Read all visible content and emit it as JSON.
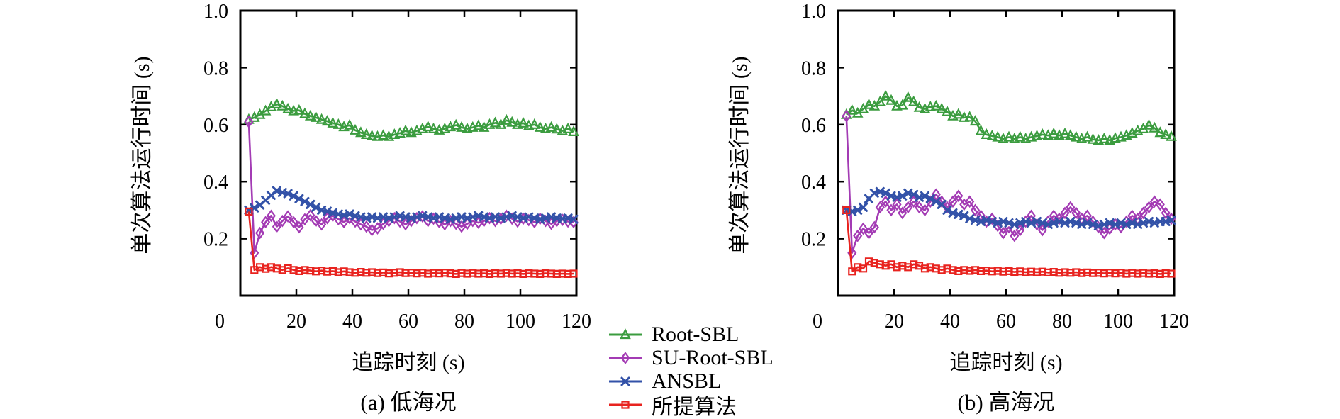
{
  "chart_data": [
    {
      "type": "line",
      "title": "(a) 低海况",
      "xlabel": "追踪时刻 (s)",
      "ylabel": "单次算法运行时间 (s)",
      "xlim": [
        0,
        120
      ],
      "ylim": [
        0,
        1.0
      ],
      "x_ticks": [
        0,
        20,
        40,
        60,
        80,
        100,
        120
      ],
      "x_tick_labels": [
        "0",
        "20",
        "40",
        "60",
        "80",
        "100",
        "120"
      ],
      "y_ticks": [
        0.2,
        0.4,
        0.6,
        0.8,
        1.0
      ],
      "y_tick_labels": [
        "0.2",
        "0.4",
        "0.6",
        "0.8",
        "1.0"
      ],
      "grid": false,
      "x": [
        3,
        5,
        7,
        9,
        11,
        13,
        15,
        17,
        19,
        21,
        23,
        25,
        27,
        29,
        31,
        33,
        35,
        37,
        39,
        41,
        43,
        45,
        47,
        49,
        51,
        53,
        55,
        57,
        59,
        61,
        63,
        65,
        67,
        69,
        71,
        73,
        75,
        77,
        79,
        81,
        83,
        85,
        87,
        89,
        91,
        93,
        95,
        97,
        99,
        101,
        103,
        105,
        107,
        109,
        111,
        113,
        115,
        117,
        119
      ],
      "series": [
        {
          "name": "Root-SBL",
          "color": "#3B9C3F",
          "marker": "triangle",
          "values": [
            0.618,
            0.625,
            0.635,
            0.648,
            0.662,
            0.672,
            0.665,
            0.655,
            0.648,
            0.65,
            0.638,
            0.63,
            0.625,
            0.618,
            0.612,
            0.605,
            0.6,
            0.592,
            0.598,
            0.58,
            0.572,
            0.565,
            0.56,
            0.558,
            0.562,
            0.558,
            0.565,
            0.57,
            0.578,
            0.572,
            0.578,
            0.585,
            0.592,
            0.585,
            0.58,
            0.585,
            0.592,
            0.598,
            0.59,
            0.585,
            0.59,
            0.596,
            0.59,
            0.6,
            0.606,
            0.6,
            0.615,
            0.608,
            0.6,
            0.605,
            0.596,
            0.6,
            0.59,
            0.585,
            0.59,
            0.584,
            0.578,
            0.585,
            0.575
          ]
        },
        {
          "name": "SU-Root-SBL",
          "color": "#A33BB4",
          "marker": "diamond",
          "values": [
            0.61,
            0.15,
            0.22,
            0.258,
            0.28,
            0.242,
            0.262,
            0.278,
            0.258,
            0.24,
            0.268,
            0.282,
            0.262,
            0.25,
            0.272,
            0.28,
            0.268,
            0.258,
            0.272,
            0.26,
            0.25,
            0.242,
            0.23,
            0.236,
            0.252,
            0.262,
            0.272,
            0.26,
            0.25,
            0.262,
            0.272,
            0.278,
            0.262,
            0.27,
            0.258,
            0.25,
            0.262,
            0.252,
            0.242,
            0.252,
            0.262,
            0.256,
            0.262,
            0.272,
            0.262,
            0.27,
            0.28,
            0.27,
            0.26,
            0.27,
            0.265,
            0.258,
            0.27,
            0.262,
            0.252,
            0.262,
            0.266,
            0.26,
            0.258
          ]
        },
        {
          "name": "ANSBL",
          "color": "#3352A8",
          "marker": "x",
          "values": [
            0.3,
            0.308,
            0.318,
            0.335,
            0.352,
            0.368,
            0.362,
            0.358,
            0.35,
            0.34,
            0.33,
            0.32,
            0.31,
            0.3,
            0.296,
            0.29,
            0.286,
            0.282,
            0.286,
            0.28,
            0.276,
            0.272,
            0.276,
            0.272,
            0.276,
            0.272,
            0.276,
            0.28,
            0.276,
            0.272,
            0.276,
            0.28,
            0.276,
            0.272,
            0.276,
            0.272,
            0.268,
            0.272,
            0.276,
            0.272,
            0.276,
            0.28,
            0.276,
            0.272,
            0.276,
            0.272,
            0.276,
            0.28,
            0.276,
            0.272,
            0.276,
            0.272,
            0.268,
            0.272,
            0.276,
            0.272,
            0.27,
            0.272,
            0.268
          ]
        },
        {
          "name": "所提算法",
          "color": "#E8231F",
          "marker": "square",
          "values": [
            0.295,
            0.09,
            0.1,
            0.094,
            0.1,
            0.095,
            0.09,
            0.096,
            0.09,
            0.086,
            0.09,
            0.088,
            0.085,
            0.088,
            0.084,
            0.086,
            0.082,
            0.085,
            0.082,
            0.08,
            0.083,
            0.08,
            0.082,
            0.079,
            0.081,
            0.078,
            0.08,
            0.082,
            0.079,
            0.08,
            0.078,
            0.08,
            0.077,
            0.079,
            0.078,
            0.08,
            0.078,
            0.076,
            0.079,
            0.077,
            0.079,
            0.077,
            0.078,
            0.076,
            0.078,
            0.077,
            0.079,
            0.077,
            0.078,
            0.076,
            0.078,
            0.077,
            0.076,
            0.078,
            0.077,
            0.076,
            0.077,
            0.076,
            0.077
          ]
        }
      ]
    },
    {
      "type": "line",
      "title": "(b) 高海况",
      "xlabel": "追踪时刻 (s)",
      "ylabel": "单次算法运行时间 (s)",
      "xlim": [
        0,
        120
      ],
      "ylim": [
        0,
        1.0
      ],
      "x_ticks": [
        0,
        20,
        40,
        60,
        80,
        100,
        120
      ],
      "x_tick_labels": [
        "0",
        "20",
        "40",
        "60",
        "80",
        "100",
        "120"
      ],
      "y_ticks": [
        0.2,
        0.4,
        0.6,
        0.8,
        1.0
      ],
      "y_tick_labels": [
        "0.2",
        "0.4",
        "0.6",
        "0.8",
        "1.0"
      ],
      "grid": false,
      "x": [
        3,
        5,
        7,
        9,
        11,
        13,
        15,
        17,
        19,
        21,
        23,
        25,
        27,
        29,
        31,
        33,
        35,
        37,
        39,
        41,
        43,
        45,
        47,
        49,
        51,
        53,
        55,
        57,
        59,
        61,
        63,
        65,
        67,
        69,
        71,
        73,
        75,
        77,
        79,
        81,
        83,
        85,
        87,
        89,
        91,
        93,
        95,
        97,
        99,
        101,
        103,
        105,
        107,
        109,
        111,
        113,
        115,
        117,
        119
      ],
      "series": [
        {
          "name": "Root-SBL",
          "color": "#3B9C3F",
          "marker": "triangle",
          "values": [
            0.635,
            0.65,
            0.64,
            0.655,
            0.67,
            0.665,
            0.68,
            0.7,
            0.685,
            0.665,
            0.668,
            0.695,
            0.68,
            0.66,
            0.655,
            0.662,
            0.665,
            0.655,
            0.645,
            0.63,
            0.636,
            0.625,
            0.626,
            0.612,
            0.578,
            0.565,
            0.56,
            0.556,
            0.55,
            0.556,
            0.55,
            0.556,
            0.55,
            0.556,
            0.56,
            0.565,
            0.562,
            0.568,
            0.562,
            0.568,
            0.562,
            0.556,
            0.55,
            0.556,
            0.548,
            0.545,
            0.55,
            0.545,
            0.552,
            0.556,
            0.562,
            0.57,
            0.578,
            0.585,
            0.598,
            0.588,
            0.572,
            0.565,
            0.558
          ]
        },
        {
          "name": "SU-Root-SBL",
          "color": "#A33BB4",
          "marker": "diamond",
          "values": [
            0.63,
            0.15,
            0.21,
            0.235,
            0.22,
            0.24,
            0.31,
            0.33,
            0.3,
            0.32,
            0.29,
            0.31,
            0.33,
            0.31,
            0.3,
            0.33,
            0.355,
            0.33,
            0.31,
            0.33,
            0.35,
            0.32,
            0.33,
            0.3,
            0.28,
            0.26,
            0.27,
            0.245,
            0.22,
            0.24,
            0.21,
            0.23,
            0.26,
            0.28,
            0.25,
            0.23,
            0.26,
            0.28,
            0.27,
            0.29,
            0.31,
            0.29,
            0.27,
            0.28,
            0.26,
            0.24,
            0.22,
            0.235,
            0.25,
            0.24,
            0.26,
            0.28,
            0.27,
            0.29,
            0.31,
            0.33,
            0.32,
            0.29,
            0.27
          ]
        },
        {
          "name": "ANSBL",
          "color": "#3352A8",
          "marker": "x",
          "values": [
            0.3,
            0.295,
            0.3,
            0.31,
            0.34,
            0.36,
            0.365,
            0.36,
            0.35,
            0.345,
            0.35,
            0.36,
            0.355,
            0.345,
            0.35,
            0.34,
            0.33,
            0.32,
            0.3,
            0.29,
            0.285,
            0.28,
            0.27,
            0.265,
            0.26,
            0.265,
            0.26,
            0.255,
            0.26,
            0.255,
            0.25,
            0.255,
            0.26,
            0.255,
            0.26,
            0.255,
            0.25,
            0.255,
            0.26,
            0.255,
            0.26,
            0.255,
            0.25,
            0.255,
            0.25,
            0.245,
            0.25,
            0.255,
            0.25,
            0.255,
            0.25,
            0.255,
            0.25,
            0.255,
            0.26,
            0.255,
            0.26,
            0.26,
            0.265
          ]
        },
        {
          "name": "所提算法",
          "color": "#E8231F",
          "marker": "square",
          "values": [
            0.3,
            0.085,
            0.1,
            0.095,
            0.12,
            0.115,
            0.11,
            0.105,
            0.11,
            0.1,
            0.105,
            0.1,
            0.11,
            0.105,
            0.095,
            0.1,
            0.095,
            0.09,
            0.095,
            0.09,
            0.086,
            0.09,
            0.087,
            0.09,
            0.086,
            0.088,
            0.085,
            0.087,
            0.084,
            0.086,
            0.083,
            0.085,
            0.082,
            0.084,
            0.082,
            0.084,
            0.081,
            0.083,
            0.08,
            0.082,
            0.08,
            0.082,
            0.079,
            0.081,
            0.079,
            0.08,
            0.078,
            0.08,
            0.078,
            0.08,
            0.077,
            0.079,
            0.077,
            0.079,
            0.077,
            0.078,
            0.076,
            0.078,
            0.077
          ]
        }
      ]
    }
  ],
  "legend": {
    "items": [
      {
        "label": "Root-SBL"
      },
      {
        "label": "SU-Root-SBL"
      },
      {
        "label": "ANSBL"
      },
      {
        "label": "所提算法"
      }
    ]
  }
}
